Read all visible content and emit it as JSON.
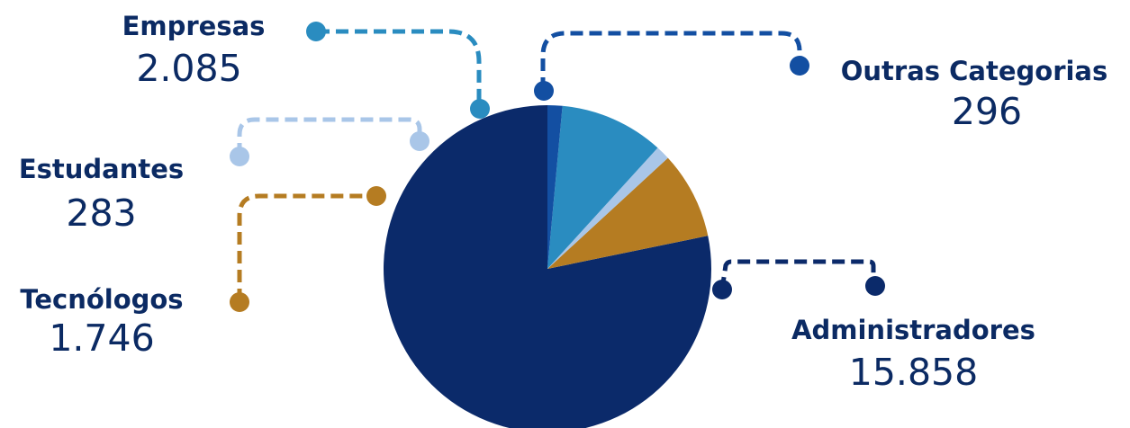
{
  "chart_data": {
    "type": "pie",
    "title": "",
    "categories": [
      "Administradores",
      "Tecnólogos",
      "Estudantes",
      "Empresas",
      "Outras Categorias"
    ],
    "values": [
      15858,
      1746,
      283,
      2085,
      296
    ],
    "value_labels": [
      "15.858",
      "1.746",
      "283",
      "2.085",
      "296"
    ],
    "colors": [
      "#0b2a6a",
      "#b57c22",
      "#a9c6e8",
      "#2a8cc0",
      "#134fa2"
    ],
    "start": "12 o'clock",
    "direction": "counterclockwise",
    "legend": "none (callout labels with dashed leader lines)"
  }
}
